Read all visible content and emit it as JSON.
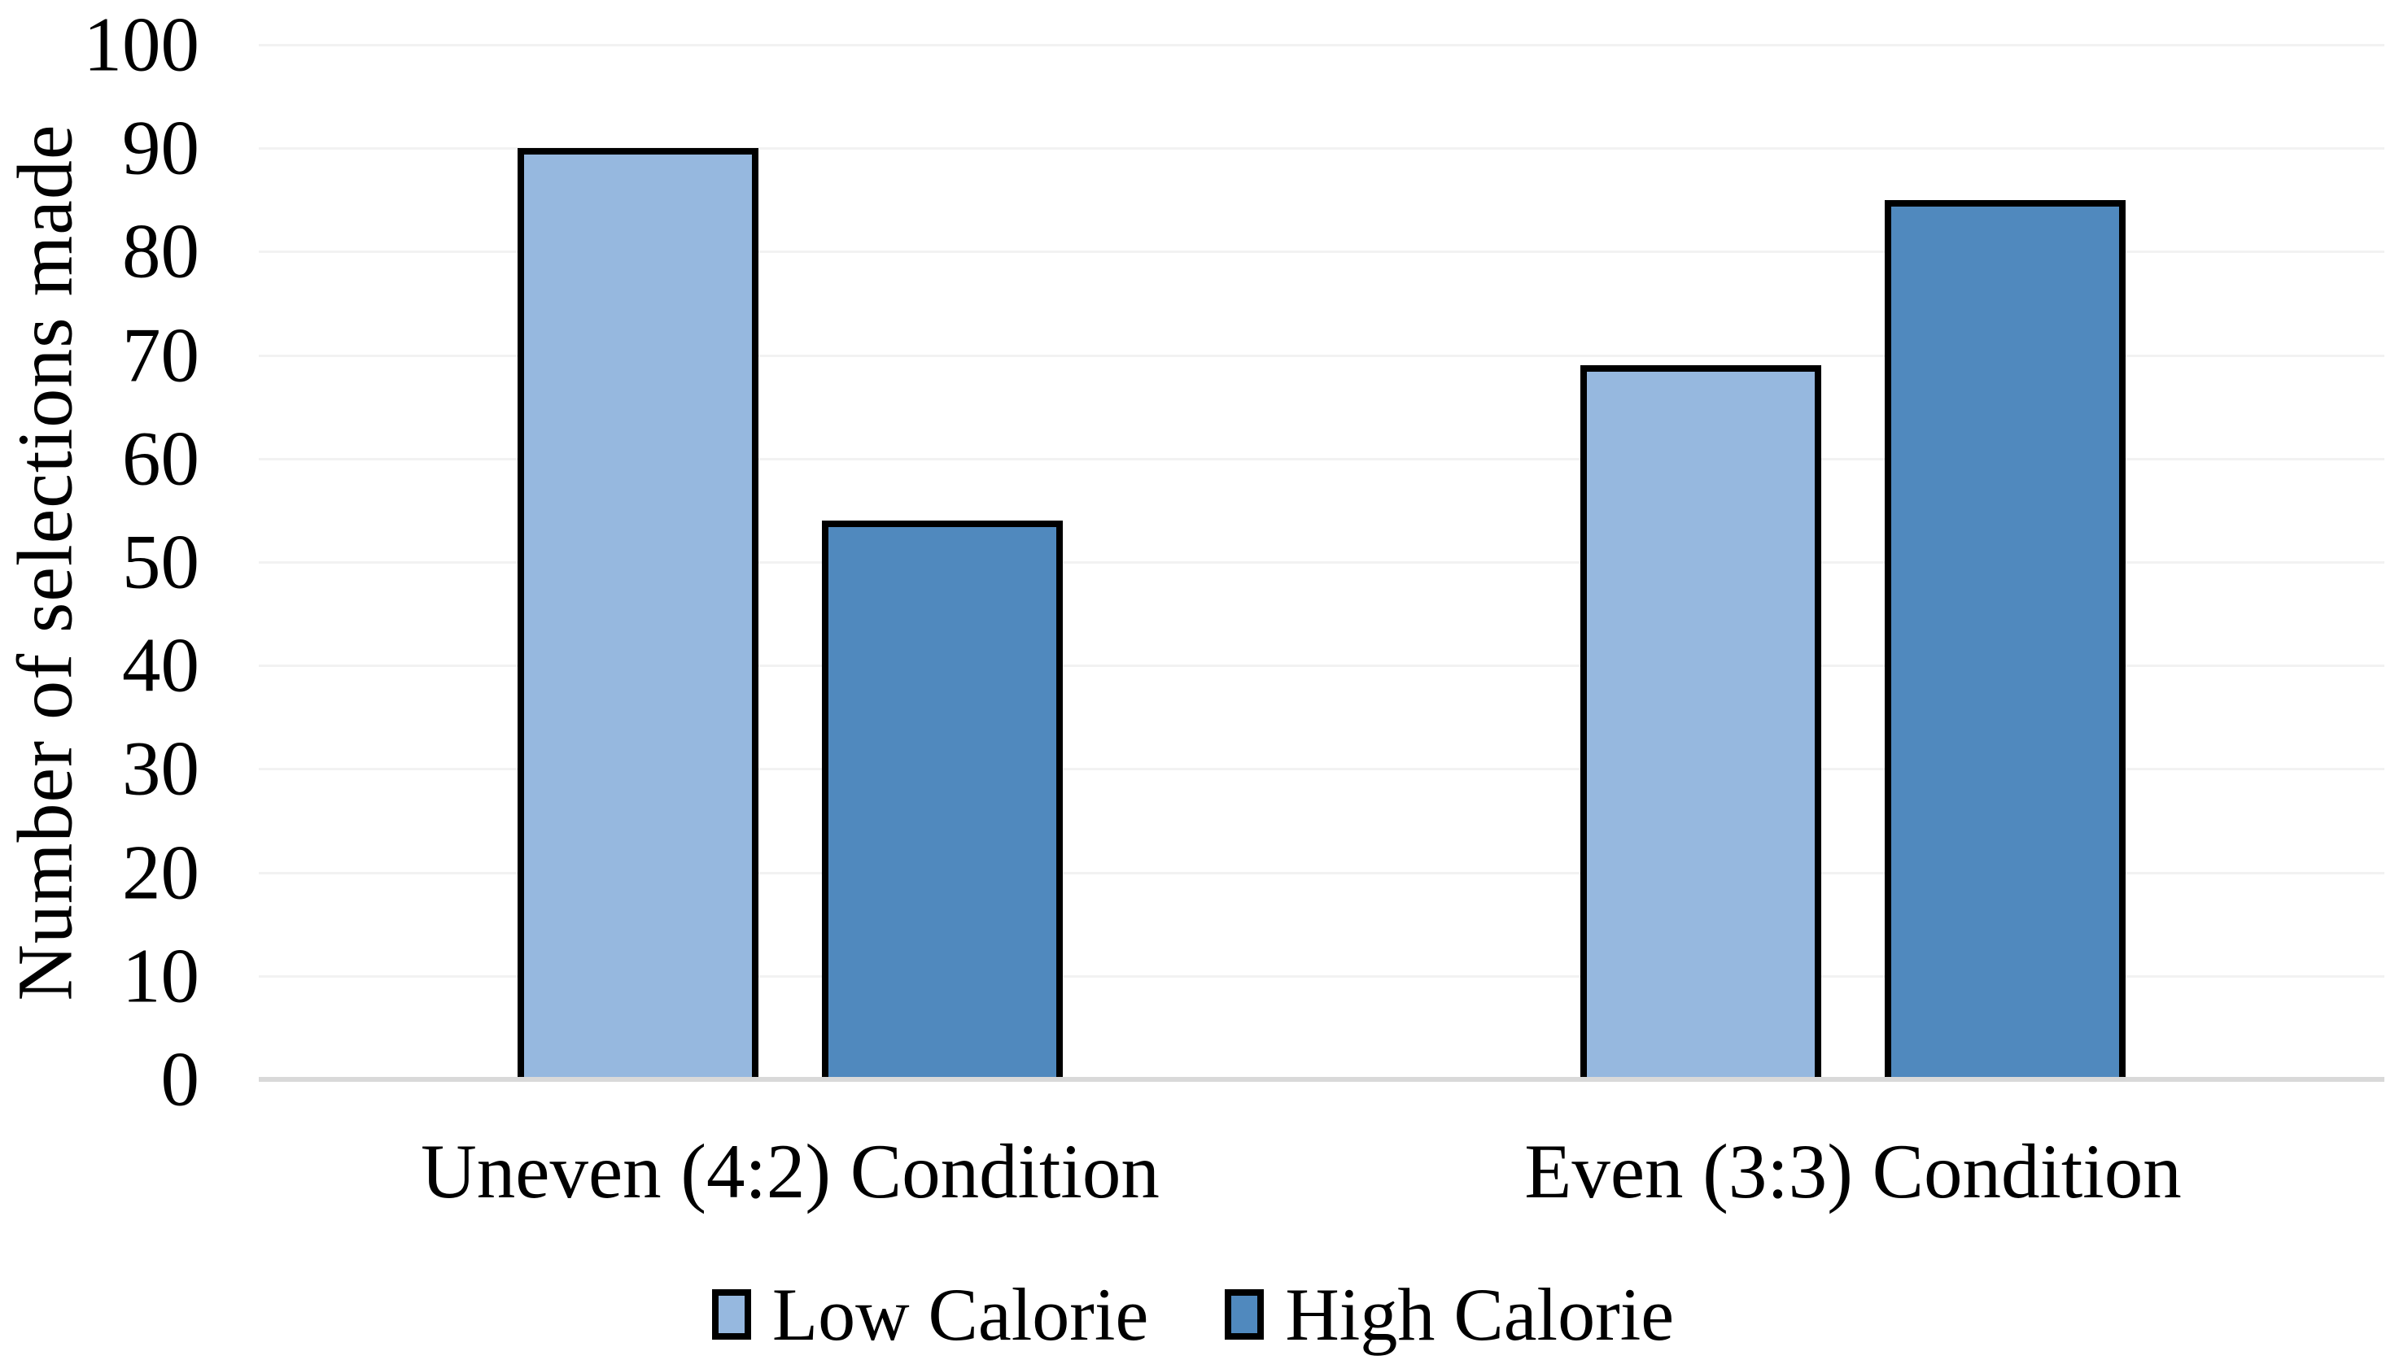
{
  "chart_data": {
    "type": "bar",
    "title": "",
    "categories": [
      "Uneven (4:2) Condition",
      "Even (3:3) Condition"
    ],
    "series": [
      {
        "name": "Low Calorie",
        "color": "#96B8DF",
        "values": [
          90,
          69
        ]
      },
      {
        "name": "High Calorie",
        "color": "#5089BE",
        "values": [
          54,
          85
        ]
      }
    ],
    "xlabel": "",
    "ylabel": "Number of selections made",
    "ylim": [
      0,
      100
    ],
    "yticks": [
      0,
      10,
      20,
      30,
      40,
      50,
      60,
      70,
      80,
      90,
      100
    ],
    "grid": true,
    "legend_position": "bottom",
    "colors": {
      "background": "#FFFFFF",
      "text": "#000000",
      "bar_border": "#000000",
      "gridline": "#F2F2F2",
      "axis_line": "#D9D9D9"
    }
  }
}
